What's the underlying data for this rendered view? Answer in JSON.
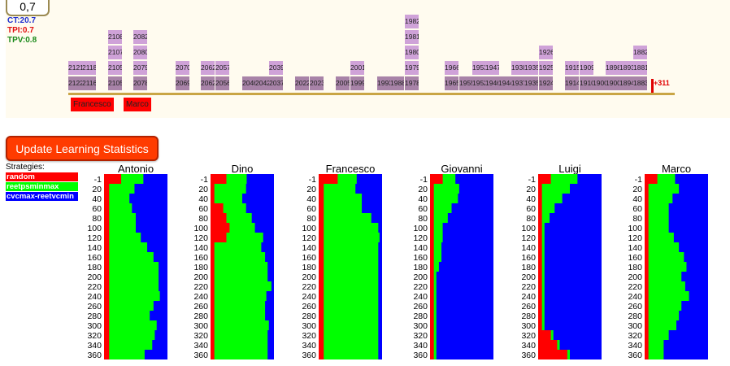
{
  "header": {
    "score": "0,7",
    "stats": [
      {
        "label": "CT:20.7",
        "color": "#1f2fd0"
      },
      {
        "label": "TPI:0.7",
        "color": "#e01010"
      },
      {
        "label": "TPV:0.8",
        "color": "#1a8a1a"
      }
    ]
  },
  "timeline": {
    "stacks": [
      {
        "tiles": [
          "2122",
          "2121"
        ]
      },
      {
        "tiles": [
          "2116",
          "2118"
        ]
      },
      {
        "tiles": [
          "2105",
          "2105",
          "2107",
          "2108"
        ]
      },
      {
        "tiles": [
          "2078",
          "2079",
          "2080",
          "2082"
        ]
      },
      {
        "tiles": [
          "2069",
          "2070"
        ]
      },
      {
        "tiles": [
          "2062",
          "2062"
        ]
      },
      {
        "tiles": [
          "2056",
          "2057"
        ]
      },
      {
        "tiles": [
          "2046"
        ]
      },
      {
        "tiles": [
          "2042"
        ]
      },
      {
        "tiles": [
          "2037",
          "2039"
        ]
      },
      {
        "tiles": [
          "2022"
        ]
      },
      {
        "tiles": [
          "2023"
        ]
      },
      {
        "tiles": [
          "2005"
        ]
      },
      {
        "tiles": [
          "1999",
          "2001"
        ]
      },
      {
        "tiles": [
          "1993"
        ]
      },
      {
        "tiles": [
          "1988"
        ]
      },
      {
        "tiles": [
          "1978",
          "1979",
          "1980",
          "1981",
          "1982"
        ]
      },
      {
        "tiles": [
          "1965",
          "1966"
        ]
      },
      {
        "tiles": [
          "1955"
        ]
      },
      {
        "tiles": [
          "1952",
          "1953"
        ]
      },
      {
        "tiles": [
          "1946",
          "1947"
        ]
      },
      {
        "tiles": [
          "1944"
        ]
      },
      {
        "tiles": [
          "1937",
          "1938"
        ]
      },
      {
        "tiles": [
          "1935",
          "1935"
        ]
      },
      {
        "tiles": [
          "1924",
          "1925",
          "1926"
        ]
      },
      {
        "tiles": [
          "1914",
          "1915"
        ]
      },
      {
        "tiles": [
          "1910",
          "1909"
        ]
      },
      {
        "tiles": [
          "1900"
        ]
      },
      {
        "tiles": [
          "1900",
          "1898"
        ]
      },
      {
        "tiles": [
          "1894",
          "1893"
        ]
      },
      {
        "tiles": [
          "1883",
          "1881",
          "1882"
        ]
      }
    ],
    "cursor_label": "+311",
    "players_below": [
      "Francesco",
      "Marco"
    ]
  },
  "actions": {
    "update_label": "Update Learning Statistics"
  },
  "legend": {
    "title": "Strategies:",
    "items": [
      {
        "label": "random",
        "color": "#ff0000"
      },
      {
        "label": "reetpsminmax",
        "color": "#00ff00"
      },
      {
        "label": "cvcmax-reetvcmin",
        "color": "#0000ff"
      }
    ]
  },
  "chart_data": [
    {
      "type": "bar",
      "stacked": "horizontal-100",
      "title": "Antonio",
      "categories": [
        "-1",
        "20",
        "40",
        "60",
        "80",
        "100",
        "120",
        "140",
        "160",
        "180",
        "200",
        "220",
        "240",
        "260",
        "280",
        "300",
        "320",
        "340",
        "360"
      ],
      "series": [
        {
          "name": "random",
          "values": [
            0.27,
            0.08,
            0.08,
            0.08,
            0.08,
            0.08,
            0.08,
            0.08,
            0.08,
            0.08,
            0.08,
            0.08,
            0.08,
            0.08,
            0.08,
            0.08,
            0.08,
            0.08,
            0.08
          ]
        },
        {
          "name": "reetpsminmax",
          "values": [
            0.35,
            0.4,
            0.32,
            0.36,
            0.42,
            0.42,
            0.5,
            0.6,
            0.7,
            0.78,
            0.78,
            0.78,
            0.8,
            0.7,
            0.64,
            0.75,
            0.72,
            0.68,
            0.56
          ]
        },
        {
          "name": "cvcmax-reetvcmin",
          "values": [
            0.38,
            0.52,
            0.6,
            0.56,
            0.5,
            0.5,
            0.42,
            0.32,
            0.22,
            0.14,
            0.14,
            0.14,
            0.12,
            0.22,
            0.28,
            0.17,
            0.2,
            0.24,
            0.36
          ]
        }
      ]
    },
    {
      "type": "bar",
      "stacked": "horizontal-100",
      "title": "Dino",
      "categories": [
        "-1",
        "20",
        "40",
        "60",
        "80",
        "100",
        "120",
        "140",
        "160",
        "180",
        "200",
        "220",
        "240",
        "260",
        "280",
        "300",
        "320",
        "340",
        "360"
      ],
      "series": [
        {
          "name": "random",
          "values": [
            0.25,
            0.06,
            0.06,
            0.2,
            0.25,
            0.3,
            0.25,
            0.06,
            0.06,
            0.06,
            0.06,
            0.06,
            0.06,
            0.06,
            0.06,
            0.06,
            0.06,
            0.06,
            0.06
          ]
        },
        {
          "name": "reetpsminmax",
          "values": [
            0.32,
            0.5,
            0.44,
            0.36,
            0.4,
            0.4,
            0.58,
            0.74,
            0.8,
            0.84,
            0.84,
            0.9,
            0.82,
            0.8,
            0.8,
            0.86,
            0.84,
            0.84,
            0.84
          ]
        },
        {
          "name": "cvcmax-reetvcmin",
          "values": [
            0.43,
            0.44,
            0.5,
            0.44,
            0.35,
            0.3,
            0.17,
            0.2,
            0.14,
            0.1,
            0.1,
            0.04,
            0.12,
            0.14,
            0.14,
            0.08,
            0.1,
            0.1,
            0.1
          ]
        }
      ]
    },
    {
      "type": "bar",
      "stacked": "horizontal-100",
      "title": "Francesco",
      "categories": [
        "-1",
        "20",
        "40",
        "60",
        "80",
        "100",
        "120",
        "140",
        "160",
        "180",
        "200",
        "220",
        "240",
        "260",
        "280",
        "300",
        "320",
        "340",
        "360"
      ],
      "series": [
        {
          "name": "random",
          "values": [
            0.3,
            0.08,
            0.08,
            0.08,
            0.08,
            0.08,
            0.08,
            0.08,
            0.08,
            0.08,
            0.08,
            0.08,
            0.08,
            0.08,
            0.08,
            0.08,
            0.08,
            0.08,
            0.08
          ]
        },
        {
          "name": "reetpsminmax",
          "values": [
            0.3,
            0.5,
            0.6,
            0.6,
            0.75,
            0.86,
            0.88,
            0.86,
            0.86,
            0.86,
            0.86,
            0.86,
            0.86,
            0.86,
            0.86,
            0.86,
            0.86,
            0.86,
            0.86
          ]
        },
        {
          "name": "cvcmax-reetvcmin",
          "values": [
            0.4,
            0.42,
            0.32,
            0.32,
            0.17,
            0.06,
            0.04,
            0.06,
            0.06,
            0.06,
            0.06,
            0.06,
            0.06,
            0.06,
            0.06,
            0.06,
            0.06,
            0.06,
            0.06
          ]
        }
      ]
    },
    {
      "type": "bar",
      "stacked": "horizontal-100",
      "title": "Giovanni",
      "categories": [
        "-1",
        "20",
        "40",
        "60",
        "80",
        "100",
        "120",
        "140",
        "160",
        "180",
        "200",
        "220",
        "240",
        "260",
        "280",
        "300",
        "320",
        "340",
        "360"
      ],
      "series": [
        {
          "name": "random",
          "values": [
            0.2,
            0.06,
            0.06,
            0.06,
            0.06,
            0.06,
            0.06,
            0.06,
            0.06,
            0.06,
            0.06,
            0.06,
            0.06,
            0.06,
            0.06,
            0.06,
            0.06,
            0.06,
            0.06
          ]
        },
        {
          "name": "reetpsminmax",
          "values": [
            0.2,
            0.4,
            0.38,
            0.28,
            0.22,
            0.14,
            0.14,
            0.12,
            0.12,
            0.08,
            0.04,
            0.04,
            0.04,
            0.04,
            0.04,
            0.04,
            0.04,
            0.04,
            0.04
          ]
        },
        {
          "name": "cvcmax-reetvcmin",
          "values": [
            0.6,
            0.54,
            0.56,
            0.66,
            0.72,
            0.8,
            0.8,
            0.82,
            0.82,
            0.86,
            0.9,
            0.9,
            0.9,
            0.9,
            0.9,
            0.9,
            0.9,
            0.9,
            0.9
          ]
        }
      ]
    },
    {
      "type": "bar",
      "stacked": "horizontal-100",
      "title": "Luigi",
      "categories": [
        "-1",
        "20",
        "40",
        "60",
        "80",
        "100",
        "120",
        "140",
        "160",
        "180",
        "200",
        "220",
        "240",
        "260",
        "280",
        "300",
        "320",
        "340",
        "360"
      ],
      "series": [
        {
          "name": "random",
          "values": [
            0.2,
            0.06,
            0.06,
            0.06,
            0.06,
            0.06,
            0.06,
            0.06,
            0.06,
            0.06,
            0.06,
            0.06,
            0.06,
            0.06,
            0.06,
            0.06,
            0.2,
            0.3,
            0.46
          ]
        },
        {
          "name": "reetpsminmax",
          "values": [
            0.42,
            0.44,
            0.32,
            0.2,
            0.12,
            0.04,
            0.04,
            0.04,
            0.04,
            0.04,
            0.04,
            0.04,
            0.04,
            0.04,
            0.04,
            0.04,
            0.04,
            0.04,
            0.04
          ]
        },
        {
          "name": "cvcmax-reetvcmin",
          "values": [
            0.38,
            0.5,
            0.62,
            0.74,
            0.82,
            0.9,
            0.9,
            0.9,
            0.9,
            0.9,
            0.9,
            0.9,
            0.9,
            0.9,
            0.9,
            0.9,
            0.76,
            0.66,
            0.5
          ]
        }
      ]
    },
    {
      "type": "bar",
      "stacked": "horizontal-100",
      "title": "Marco",
      "categories": [
        "-1",
        "20",
        "40",
        "60",
        "80",
        "100",
        "120",
        "140",
        "160",
        "180",
        "200",
        "220",
        "240",
        "260",
        "280",
        "300",
        "320",
        "340",
        "360"
      ],
      "series": [
        {
          "name": "random",
          "values": [
            0.2,
            0.06,
            0.06,
            0.06,
            0.06,
            0.06,
            0.06,
            0.06,
            0.06,
            0.06,
            0.06,
            0.06,
            0.06,
            0.06,
            0.06,
            0.06,
            0.06,
            0.06,
            0.06
          ]
        },
        {
          "name": "reetpsminmax",
          "values": [
            0.28,
            0.48,
            0.38,
            0.32,
            0.32,
            0.32,
            0.4,
            0.48,
            0.56,
            0.6,
            0.52,
            0.58,
            0.64,
            0.52,
            0.48,
            0.44,
            0.32,
            0.24,
            0.24
          ]
        },
        {
          "name": "cvcmax-reetvcmin",
          "values": [
            0.52,
            0.46,
            0.56,
            0.62,
            0.62,
            0.62,
            0.54,
            0.46,
            0.38,
            0.34,
            0.42,
            0.36,
            0.3,
            0.42,
            0.46,
            0.5,
            0.62,
            0.7,
            0.7
          ]
        }
      ]
    }
  ]
}
